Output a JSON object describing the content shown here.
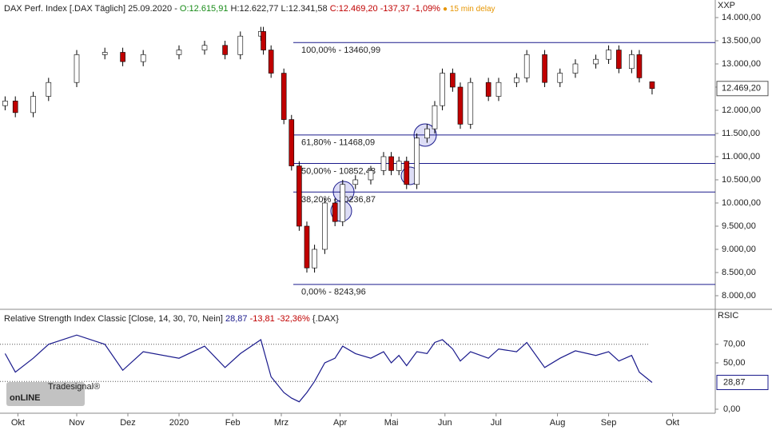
{
  "chart_data": {
    "type": "candlestick",
    "header": {
      "title": "DAX Perf. Index [.DAX Täglich] 25.09.2020 -",
      "open": "O:12.615,91",
      "high": "H:12.622,77",
      "low": "L:12.341,58",
      "close": "C:12.469,20",
      "change": "-137,37",
      "change_pct": "-1,09%",
      "delay": "● 15 min delay"
    },
    "axis_label": "XXP",
    "x": [
      2,
      6,
      13,
      19,
      30,
      41,
      48,
      56,
      70,
      80,
      88,
      94,
      102,
      103,
      106,
      111,
      114,
      117,
      120,
      123,
      127,
      131,
      134,
      139,
      145,
      150,
      153,
      156,
      159,
      163,
      167,
      170,
      173,
      177,
      180,
      184,
      191,
      195,
      202,
      206,
      213,
      219,
      225,
      233,
      238,
      242,
      247,
      250,
      255
    ],
    "open": [
      12100,
      12200,
      11950,
      12300,
      12600,
      13200,
      13250,
      13050,
      13200,
      13300,
      13400,
      13200,
      13600,
      13700,
      13300,
      12800,
      11800,
      10800,
      9500,
      8600,
      9000,
      10000,
      9600,
      10400,
      10500,
      10700,
      11000,
      10700,
      10900,
      10400,
      11400,
      11600,
      12100,
      12800,
      12500,
      11700,
      12600,
      12300,
      12600,
      12700,
      13200,
      12600,
      12800,
      13000,
      13100,
      13300,
      12900,
      13200,
      12615.91
    ],
    "high": [
      12300,
      12300,
      12400,
      12700,
      13300,
      13350,
      13350,
      13300,
      13400,
      13500,
      13500,
      13700,
      13800,
      13800,
      13400,
      12900,
      11900,
      10900,
      9600,
      9100,
      10100,
      10100,
      10500,
      10600,
      10800,
      11100,
      11100,
      11000,
      11000,
      11500,
      11700,
      12200,
      12900,
      12900,
      12600,
      12700,
      12700,
      12700,
      12800,
      13300,
      13300,
      12900,
      13100,
      13200,
      13400,
      13400,
      13300,
      13300,
      12622.77
    ],
    "low": [
      12000,
      11850,
      11850,
      12200,
      12500,
      13100,
      12950,
      12950,
      13100,
      13200,
      13100,
      13100,
      13500,
      13200,
      12700,
      11700,
      10700,
      9400,
      8500,
      8500,
      8900,
      9500,
      9500,
      10300,
      10400,
      10600,
      10600,
      10600,
      10300,
      10300,
      11300,
      11500,
      12000,
      12400,
      11600,
      11600,
      12200,
      12200,
      12500,
      12600,
      12500,
      12500,
      12700,
      12900,
      13000,
      12800,
      12800,
      12600,
      12341.58
    ],
    "close": [
      12200,
      11950,
      12300,
      12600,
      13200,
      13250,
      13050,
      13200,
      13300,
      13400,
      13200,
      13600,
      13700,
      13300,
      12800,
      11800,
      10800,
      9500,
      8600,
      9000,
      10000,
      9600,
      10400,
      10500,
      10700,
      11000,
      10700,
      10900,
      10400,
      11400,
      11600,
      12100,
      12800,
      12500,
      11700,
      12600,
      12300,
      12600,
      12700,
      13200,
      12600,
      12800,
      13000,
      13100,
      13300,
      12900,
      13200,
      12700,
      12469.2
    ],
    "up_color": "#ffffff",
    "down_color": "#c00000",
    "xlim": [
      0,
      279.7
    ],
    "xticks": [
      {
        "value": 7,
        "label": "Okt"
      },
      {
        "value": 30,
        "label": "Nov"
      },
      {
        "value": 50,
        "label": "Dez"
      },
      {
        "value": 70,
        "label": "2020"
      },
      {
        "value": 91,
        "label": "Feb"
      },
      {
        "value": 110,
        "label": "Mrz"
      },
      {
        "value": 133,
        "label": "Apr"
      },
      {
        "value": 153,
        "label": "Mai"
      },
      {
        "value": 174,
        "label": "Jun"
      },
      {
        "value": 194,
        "label": "Jul"
      },
      {
        "value": 218,
        "label": "Aug"
      },
      {
        "value": 238,
        "label": "Sep"
      },
      {
        "value": 263,
        "label": "Okt"
      }
    ],
    "ylim": [
      7741,
      14379
    ],
    "yticks": [
      {
        "value": 8000,
        "label": "8.000,00"
      },
      {
        "value": 8500,
        "label": "8.500,00"
      },
      {
        "value": 9000,
        "label": "9.000,00"
      },
      {
        "value": 9500,
        "label": "9.500,00"
      },
      {
        "value": 10000,
        "label": "10.000,00"
      },
      {
        "value": 10500,
        "label": "10.500,00"
      },
      {
        "value": 11000,
        "label": "11.000,00"
      },
      {
        "value": 11500,
        "label": "11.500,00"
      },
      {
        "value": 12000,
        "label": "12.000,00"
      },
      {
        "value": 12500,
        "label": "12.500,00"
      },
      {
        "value": 13000,
        "label": "13.000,00"
      },
      {
        "value": 13500,
        "label": "13.500,00"
      },
      {
        "value": 14000,
        "label": "14.000,00"
      }
    ],
    "last_price": {
      "value": 12469.2,
      "label": "12.469,20"
    },
    "fib_levels": [
      {
        "value": 13460.99,
        "label": "100,00% - 13460,99"
      },
      {
        "value": 11468.09,
        "label": "61,80% - 11468,09"
      },
      {
        "value": 10852.48,
        "label": "50,00% - 10852,48"
      },
      {
        "value": 10236.87,
        "label": "38,20% - 10236,87"
      },
      {
        "value": 8243.96,
        "label": "0,00% - 8243,96"
      }
    ],
    "fib_color": "#1a1a8c",
    "rsi": {
      "header": {
        "title": "Relative Strength Index Classic [Close, 14, 30, 70, Nein]",
        "value": "28,87",
        "change": "-13,81",
        "change_pct": "-32,36%",
        "symbol": "{.DAX}"
      },
      "axis_label": "RSIC",
      "color": "#1a1a8c",
      "values": [
        60,
        40,
        55,
        70,
        80,
        70,
        42,
        62,
        55,
        68,
        45,
        60,
        75,
        65,
        35,
        18,
        12,
        8,
        18,
        30,
        50,
        55,
        68,
        60,
        55,
        62,
        50,
        58,
        47,
        62,
        60,
        72,
        75,
        65,
        52,
        62,
        55,
        65,
        62,
        72,
        45,
        55,
        63,
        58,
        62,
        52,
        58,
        40,
        28.87
      ],
      "ylim": [
        -2.6,
        106.9
      ],
      "yticks": [
        {
          "value": 0,
          "label": "0,00"
        },
        {
          "value": 50,
          "label": "50,00"
        },
        {
          "value": 70,
          "label": "70,00"
        }
      ],
      "levels": [
        70,
        30
      ],
      "last": {
        "value": 28.87,
        "label": "28,87"
      }
    },
    "logo": {
      "small": "Tradesignal®",
      "big": "onLINE"
    }
  }
}
